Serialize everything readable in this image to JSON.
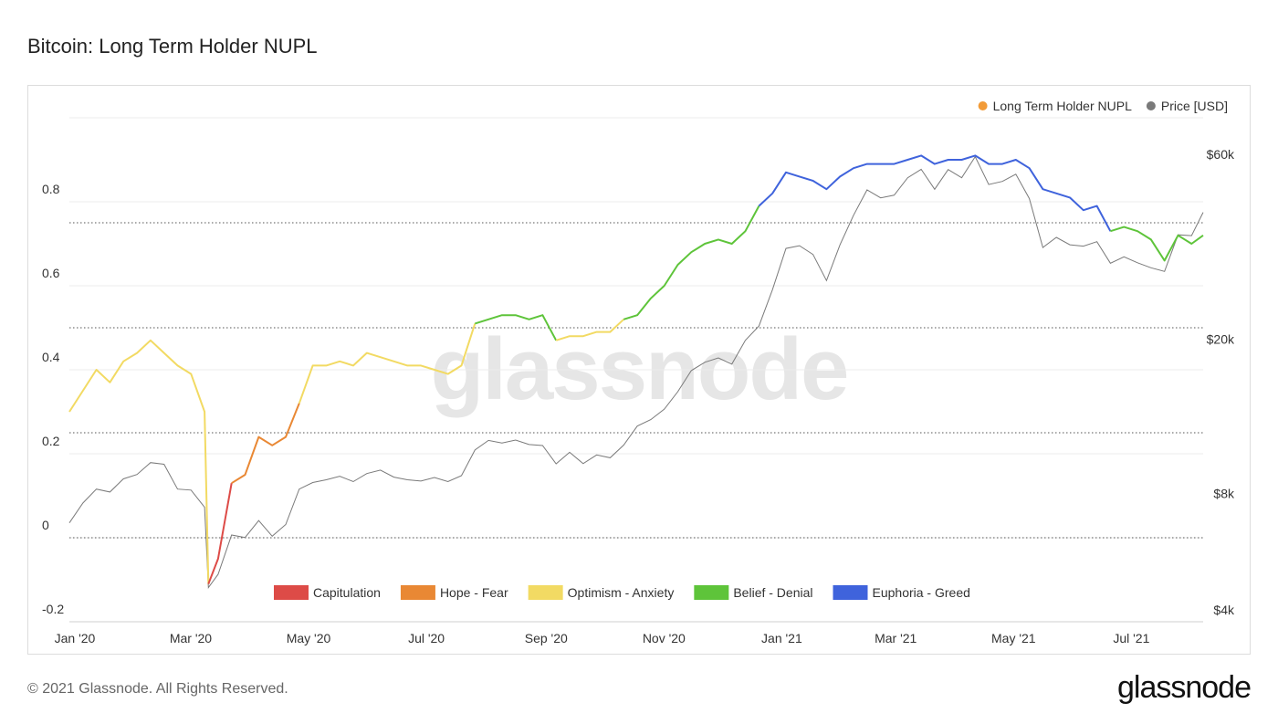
{
  "chart_data": {
    "type": "line",
    "title": "Bitcoin: Long Term Holder NUPL",
    "watermark": "glassnode",
    "x": [
      "2020-01-01",
      "2020-01-08",
      "2020-01-15",
      "2020-01-22",
      "2020-01-29",
      "2020-02-05",
      "2020-02-12",
      "2020-02-19",
      "2020-02-26",
      "2020-03-04",
      "2020-03-11",
      "2020-03-13",
      "2020-03-18",
      "2020-03-25",
      "2020-04-01",
      "2020-04-08",
      "2020-04-15",
      "2020-04-22",
      "2020-04-29",
      "2020-05-06",
      "2020-05-13",
      "2020-05-20",
      "2020-05-27",
      "2020-06-03",
      "2020-06-10",
      "2020-06-17",
      "2020-06-24",
      "2020-07-01",
      "2020-07-08",
      "2020-07-15",
      "2020-07-22",
      "2020-07-29",
      "2020-08-05",
      "2020-08-12",
      "2020-08-19",
      "2020-08-26",
      "2020-09-02",
      "2020-09-09",
      "2020-09-16",
      "2020-09-23",
      "2020-09-30",
      "2020-10-07",
      "2020-10-14",
      "2020-10-21",
      "2020-10-28",
      "2020-11-04",
      "2020-11-11",
      "2020-11-18",
      "2020-11-25",
      "2020-12-02",
      "2020-12-09",
      "2020-12-16",
      "2020-12-23",
      "2020-12-30",
      "2021-01-06",
      "2021-01-13",
      "2021-01-20",
      "2021-01-27",
      "2021-02-03",
      "2021-02-10",
      "2021-02-17",
      "2021-02-24",
      "2021-03-03",
      "2021-03-10",
      "2021-03-17",
      "2021-03-24",
      "2021-03-31",
      "2021-04-07",
      "2021-04-14",
      "2021-04-21",
      "2021-04-28",
      "2021-05-05",
      "2021-05-12",
      "2021-05-19",
      "2021-05-26",
      "2021-06-02",
      "2021-06-09",
      "2021-06-16",
      "2021-06-23",
      "2021-06-30",
      "2021-07-07",
      "2021-07-14",
      "2021-07-21",
      "2021-07-28",
      "2021-08-04",
      "2021-08-10"
    ],
    "series": [
      {
        "name": "Long Term Holder NUPL",
        "color": "#f29b38",
        "values": [
          0.3,
          0.35,
          0.4,
          0.37,
          0.42,
          0.44,
          0.47,
          0.44,
          0.41,
          0.39,
          0.3,
          -0.11,
          -0.05,
          0.13,
          0.15,
          0.24,
          0.22,
          0.24,
          0.32,
          0.41,
          0.41,
          0.42,
          0.41,
          0.44,
          0.43,
          0.42,
          0.41,
          0.41,
          0.4,
          0.39,
          0.41,
          0.51,
          0.52,
          0.53,
          0.53,
          0.52,
          0.53,
          0.47,
          0.48,
          0.48,
          0.49,
          0.49,
          0.52,
          0.53,
          0.57,
          0.6,
          0.65,
          0.68,
          0.7,
          0.71,
          0.7,
          0.73,
          0.79,
          0.82,
          0.87,
          0.86,
          0.85,
          0.83,
          0.86,
          0.88,
          0.89,
          0.89,
          0.89,
          0.9,
          0.91,
          0.89,
          0.9,
          0.9,
          0.91,
          0.89,
          0.89,
          0.9,
          0.88,
          0.83,
          0.82,
          0.81,
          0.78,
          0.79,
          0.73,
          0.74,
          0.73,
          0.71,
          0.66,
          0.72,
          0.7,
          0.72
        ]
      },
      {
        "name": "Price [USD]",
        "color": "#7a7a7a",
        "axis": "y2",
        "values": [
          7200,
          8100,
          8800,
          8650,
          9350,
          9600,
          10300,
          10200,
          8800,
          8750,
          7900,
          4900,
          5300,
          6700,
          6600,
          7300,
          6650,
          7130,
          8800,
          9150,
          9300,
          9500,
          9200,
          9650,
          9850,
          9450,
          9300,
          9230,
          9430,
          9200,
          9530,
          11100,
          11750,
          11570,
          11780,
          11470,
          11400,
          10230,
          10950,
          10240,
          10780,
          10600,
          11430,
          12800,
          13300,
          14150,
          15700,
          17800,
          18700,
          19200,
          18500,
          21300,
          23200,
          28800,
          36800,
          37400,
          35500,
          30400,
          37600,
          44800,
          52100,
          49700,
          50500,
          56000,
          58900,
          52300,
          58800,
          56000,
          63500,
          53800,
          54800,
          57200,
          49500,
          37000,
          39300,
          37600,
          37300,
          38300,
          33700,
          35000,
          33800,
          32800,
          32100,
          39900,
          39700,
          45600
        ]
      }
    ],
    "zones": [
      {
        "name": "Capitulation",
        "color": "#dd4b47"
      },
      {
        "name": "Hope - Fear",
        "color": "#e98834"
      },
      {
        "name": "Optimism - Anxiety",
        "color": "#f2da63"
      },
      {
        "name": "Belief - Denial",
        "color": "#5ec43a"
      },
      {
        "name": "Euphoria - Greed",
        "color": "#3f63dc"
      }
    ],
    "zone_bounds": [
      0,
      0.25,
      0.5,
      0.75
    ],
    "xlim": [
      "2020-01-01",
      "2021-08-10"
    ],
    "xticks": [
      {
        "value": "2020-01-01",
        "label": "Jan '20"
      },
      {
        "value": "2020-03-01",
        "label": "Mar '20"
      },
      {
        "value": "2020-05-01",
        "label": "May '20"
      },
      {
        "value": "2020-07-01",
        "label": "Jul '20"
      },
      {
        "value": "2020-09-01",
        "label": "Sep '20"
      },
      {
        "value": "2020-11-01",
        "label": "Nov '20"
      },
      {
        "value": "2021-01-01",
        "label": "Jan '21"
      },
      {
        "value": "2021-03-01",
        "label": "Mar '21"
      },
      {
        "value": "2021-05-01",
        "label": "May '21"
      },
      {
        "value": "2021-07-01",
        "label": "Jul '21"
      }
    ],
    "ylim": [
      -0.2,
      1.0
    ],
    "yticks": [
      -0.2,
      0,
      0.2,
      0.4,
      0.6,
      0.8
    ],
    "y2lim": [
      4000,
      80000
    ],
    "y2_log": true,
    "y2ticks": [
      {
        "value": 4000,
        "label": "$4k"
      },
      {
        "value": 8000,
        "label": "$8k"
      },
      {
        "value": 20000,
        "label": "$20k"
      },
      {
        "value": 60000,
        "label": "$60k"
      }
    ],
    "grid": true
  },
  "footer": {
    "copyright": "© 2021 Glassnode. All Rights Reserved.",
    "logo": "glassnode"
  }
}
